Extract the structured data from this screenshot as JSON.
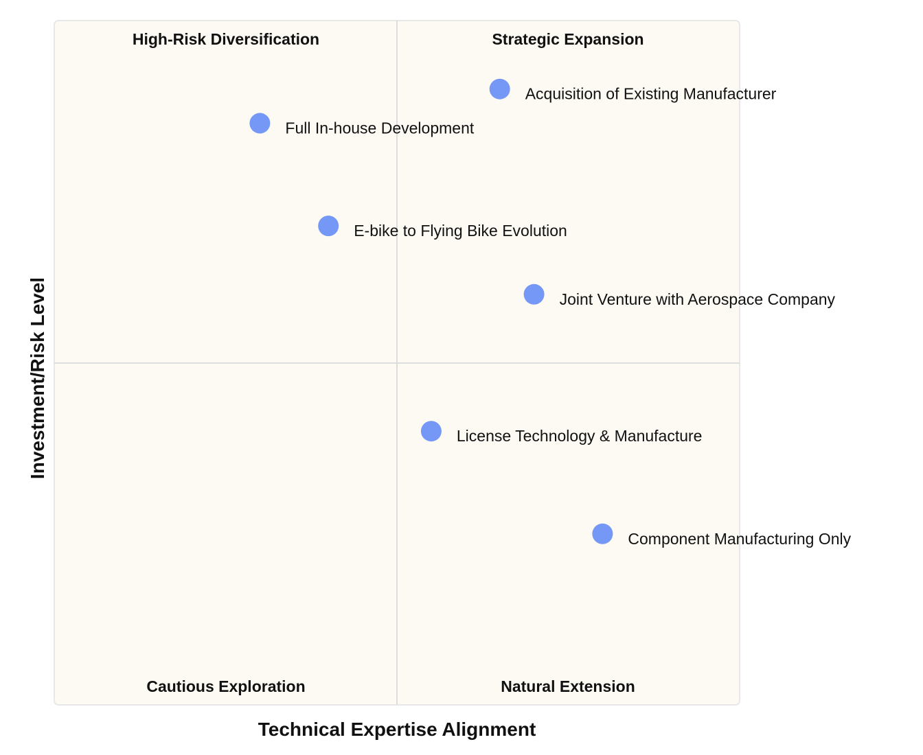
{
  "chart_data": {
    "type": "quadrant",
    "xlabel": "Technical Expertise Alignment",
    "ylabel": "Investment/Risk Level",
    "xlim": [
      0,
      1
    ],
    "ylim": [
      0,
      1
    ],
    "quadrants": {
      "top_left": "High-Risk Diversification",
      "top_right": "Strategic Expansion",
      "bottom_left": "Cautious Exploration",
      "bottom_right": "Natural Extension"
    },
    "points": [
      {
        "label": "Acquisition of Existing Manufacturer",
        "x": 0.65,
        "y": 0.9
      },
      {
        "label": "Full In-house Development",
        "x": 0.3,
        "y": 0.85
      },
      {
        "label": "E-bike to Flying Bike Evolution",
        "x": 0.4,
        "y": 0.7
      },
      {
        "label": "Joint Venture with Aerospace Company",
        "x": 0.7,
        "y": 0.6
      },
      {
        "label": "License Technology & Manufacture",
        "x": 0.55,
        "y": 0.4
      },
      {
        "label": "Component Manufacturing Only",
        "x": 0.8,
        "y": 0.25
      }
    ],
    "colors": {
      "background": "#fcfaf2",
      "point": "#7597f5",
      "grid": "#dddddd"
    }
  }
}
